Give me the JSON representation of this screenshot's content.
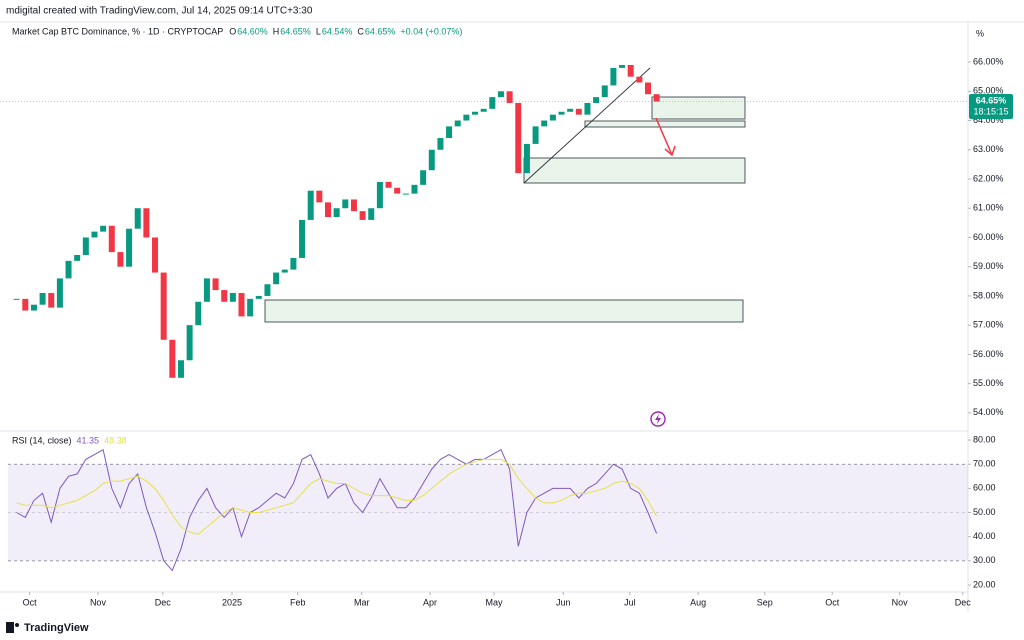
{
  "header": {
    "credit": "mdigital created with TradingView.com, Jul 14, 2025 09:14 UTC+3:30",
    "unit": "%",
    "price_label": "64.65%",
    "countdown": "18:15:15"
  },
  "footer": {
    "brand": "TradingView"
  },
  "chart_data": [
    {
      "type": "candlestick",
      "title": "Market Cap BTC Dominance, % · 1D · CRYPTOCAP",
      "ohlc_legend": [
        "O",
        "64.60%",
        "H",
        "64.65%",
        "L",
        "64.54%",
        "C",
        "64.65%",
        "+0.04 (+0.07%)"
      ],
      "up_color": "#089981",
      "down_color": "#f23645",
      "values": [
        57.9,
        57.5,
        57.7,
        58.1,
        57.6,
        58.6,
        59.2,
        59.4,
        60.0,
        60.2,
        60.4,
        59.5,
        59.0,
        60.3,
        61.0,
        60.0,
        58.8,
        56.5,
        55.2,
        55.8,
        57.0,
        57.8,
        58.6,
        58.2,
        57.8,
        58.1,
        57.3,
        57.9,
        58.0,
        58.4,
        58.8,
        58.9,
        59.3,
        60.6,
        61.6,
        61.2,
        60.7,
        61.0,
        61.3,
        60.9,
        60.6,
        61.0,
        61.9,
        61.7,
        61.5,
        61.5,
        61.8,
        62.3,
        63.0,
        63.4,
        63.8,
        64.0,
        64.2,
        64.3,
        64.4,
        64.8,
        65.0,
        64.6,
        62.2,
        63.2,
        63.8,
        64.0,
        64.2,
        64.3,
        64.4,
        64.2,
        64.6,
        64.8,
        65.2,
        65.8,
        65.9,
        65.5,
        65.3,
        64.9,
        64.65
      ],
      "xlim": [
        -1,
        110
      ],
      "xticks": [
        {
          "value": 1.5,
          "label": "Oct"
        },
        {
          "value": 9.4,
          "label": "Nov"
        },
        {
          "value": 16.9,
          "label": "Dec"
        },
        {
          "value": 24.9,
          "label": "2025"
        },
        {
          "value": 32.5,
          "label": "Feb"
        },
        {
          "value": 39.9,
          "label": "Mar"
        },
        {
          "value": 47.8,
          "label": "Apr"
        },
        {
          "value": 55.2,
          "label": "May"
        },
        {
          "value": 63.2,
          "label": "Jun"
        },
        {
          "value": 70.9,
          "label": "Jul"
        },
        {
          "value": 78.8,
          "label": "Aug"
        },
        {
          "value": 86.5,
          "label": "Sep"
        },
        {
          "value": 94.3,
          "label": "Oct"
        },
        {
          "value": 102.1,
          "label": "Nov"
        },
        {
          "value": 109.4,
          "label": "Dec"
        }
      ],
      "ylim": [
        53.38,
        67.37
      ],
      "yticks": [
        {
          "value": 54,
          "label": "54.00%"
        },
        {
          "value": 55,
          "label": "55.00%"
        },
        {
          "value": 56,
          "label": "56.00%"
        },
        {
          "value": 57,
          "label": "57.00%"
        },
        {
          "value": 58,
          "label": "58.00%"
        },
        {
          "value": 59,
          "label": "59.00%"
        },
        {
          "value": 60,
          "label": "60.00%"
        },
        {
          "value": 61,
          "label": "61.00%"
        },
        {
          "value": 62,
          "label": "62.00%"
        },
        {
          "value": 63,
          "label": "63.00%"
        },
        {
          "value": 64,
          "label": "64.00%"
        },
        {
          "value": 65,
          "label": "65.00%"
        },
        {
          "value": 66,
          "label": "66.00%"
        }
      ]
    },
    {
      "type": "line",
      "title": "RSI (14, close)",
      "series": [
        {
          "color": "#7e57c2",
          "values": [
            50,
            48,
            55,
            58,
            46,
            60,
            65,
            66,
            72,
            74,
            76,
            60,
            52,
            62,
            66,
            52,
            42,
            30,
            26,
            35,
            48,
            55,
            60,
            52,
            48,
            52,
            40,
            50,
            52,
            55,
            58,
            56,
            62,
            72,
            74,
            66,
            56,
            60,
            62,
            54,
            50,
            56,
            64,
            58,
            52,
            52,
            56,
            62,
            68,
            72,
            74,
            72,
            70,
            72,
            72,
            74,
            76,
            68,
            36,
            50,
            56,
            58,
            60,
            60,
            60,
            56,
            60,
            62,
            66,
            70,
            68,
            60,
            58,
            50,
            41.35
          ]
        },
        {
          "color": "#e6e04a",
          "values": [
            54,
            53,
            53,
            53,
            52,
            53,
            54,
            55,
            57,
            59,
            62,
            63,
            63,
            64,
            65,
            63,
            60,
            55,
            49,
            44,
            42,
            41,
            44,
            47,
            50,
            52,
            51,
            50,
            50,
            51,
            52,
            53,
            54,
            58,
            62,
            64,
            63,
            62,
            62,
            60,
            58,
            57,
            57,
            57,
            56,
            55,
            55,
            57,
            60,
            63,
            66,
            68,
            70,
            71,
            72,
            72,
            72,
            70,
            64,
            60,
            56,
            54,
            54,
            55,
            57,
            58,
            58,
            59,
            60,
            62,
            63,
            62,
            60,
            55,
            48.38
          ]
        }
      ],
      "band": [
        30,
        70
      ],
      "ylim": [
        17.1,
        83.75
      ],
      "yticks": [
        {
          "value": 20,
          "label": "20.00"
        },
        {
          "value": 30,
          "label": "30.00"
        },
        {
          "value": 40,
          "label": "40.00"
        },
        {
          "value": 50,
          "label": "50.00"
        },
        {
          "value": 60,
          "label": "60.00"
        },
        {
          "value": 70,
          "label": "70.00"
        },
        {
          "value": 80,
          "label": "80.00"
        }
      ]
    }
  ]
}
